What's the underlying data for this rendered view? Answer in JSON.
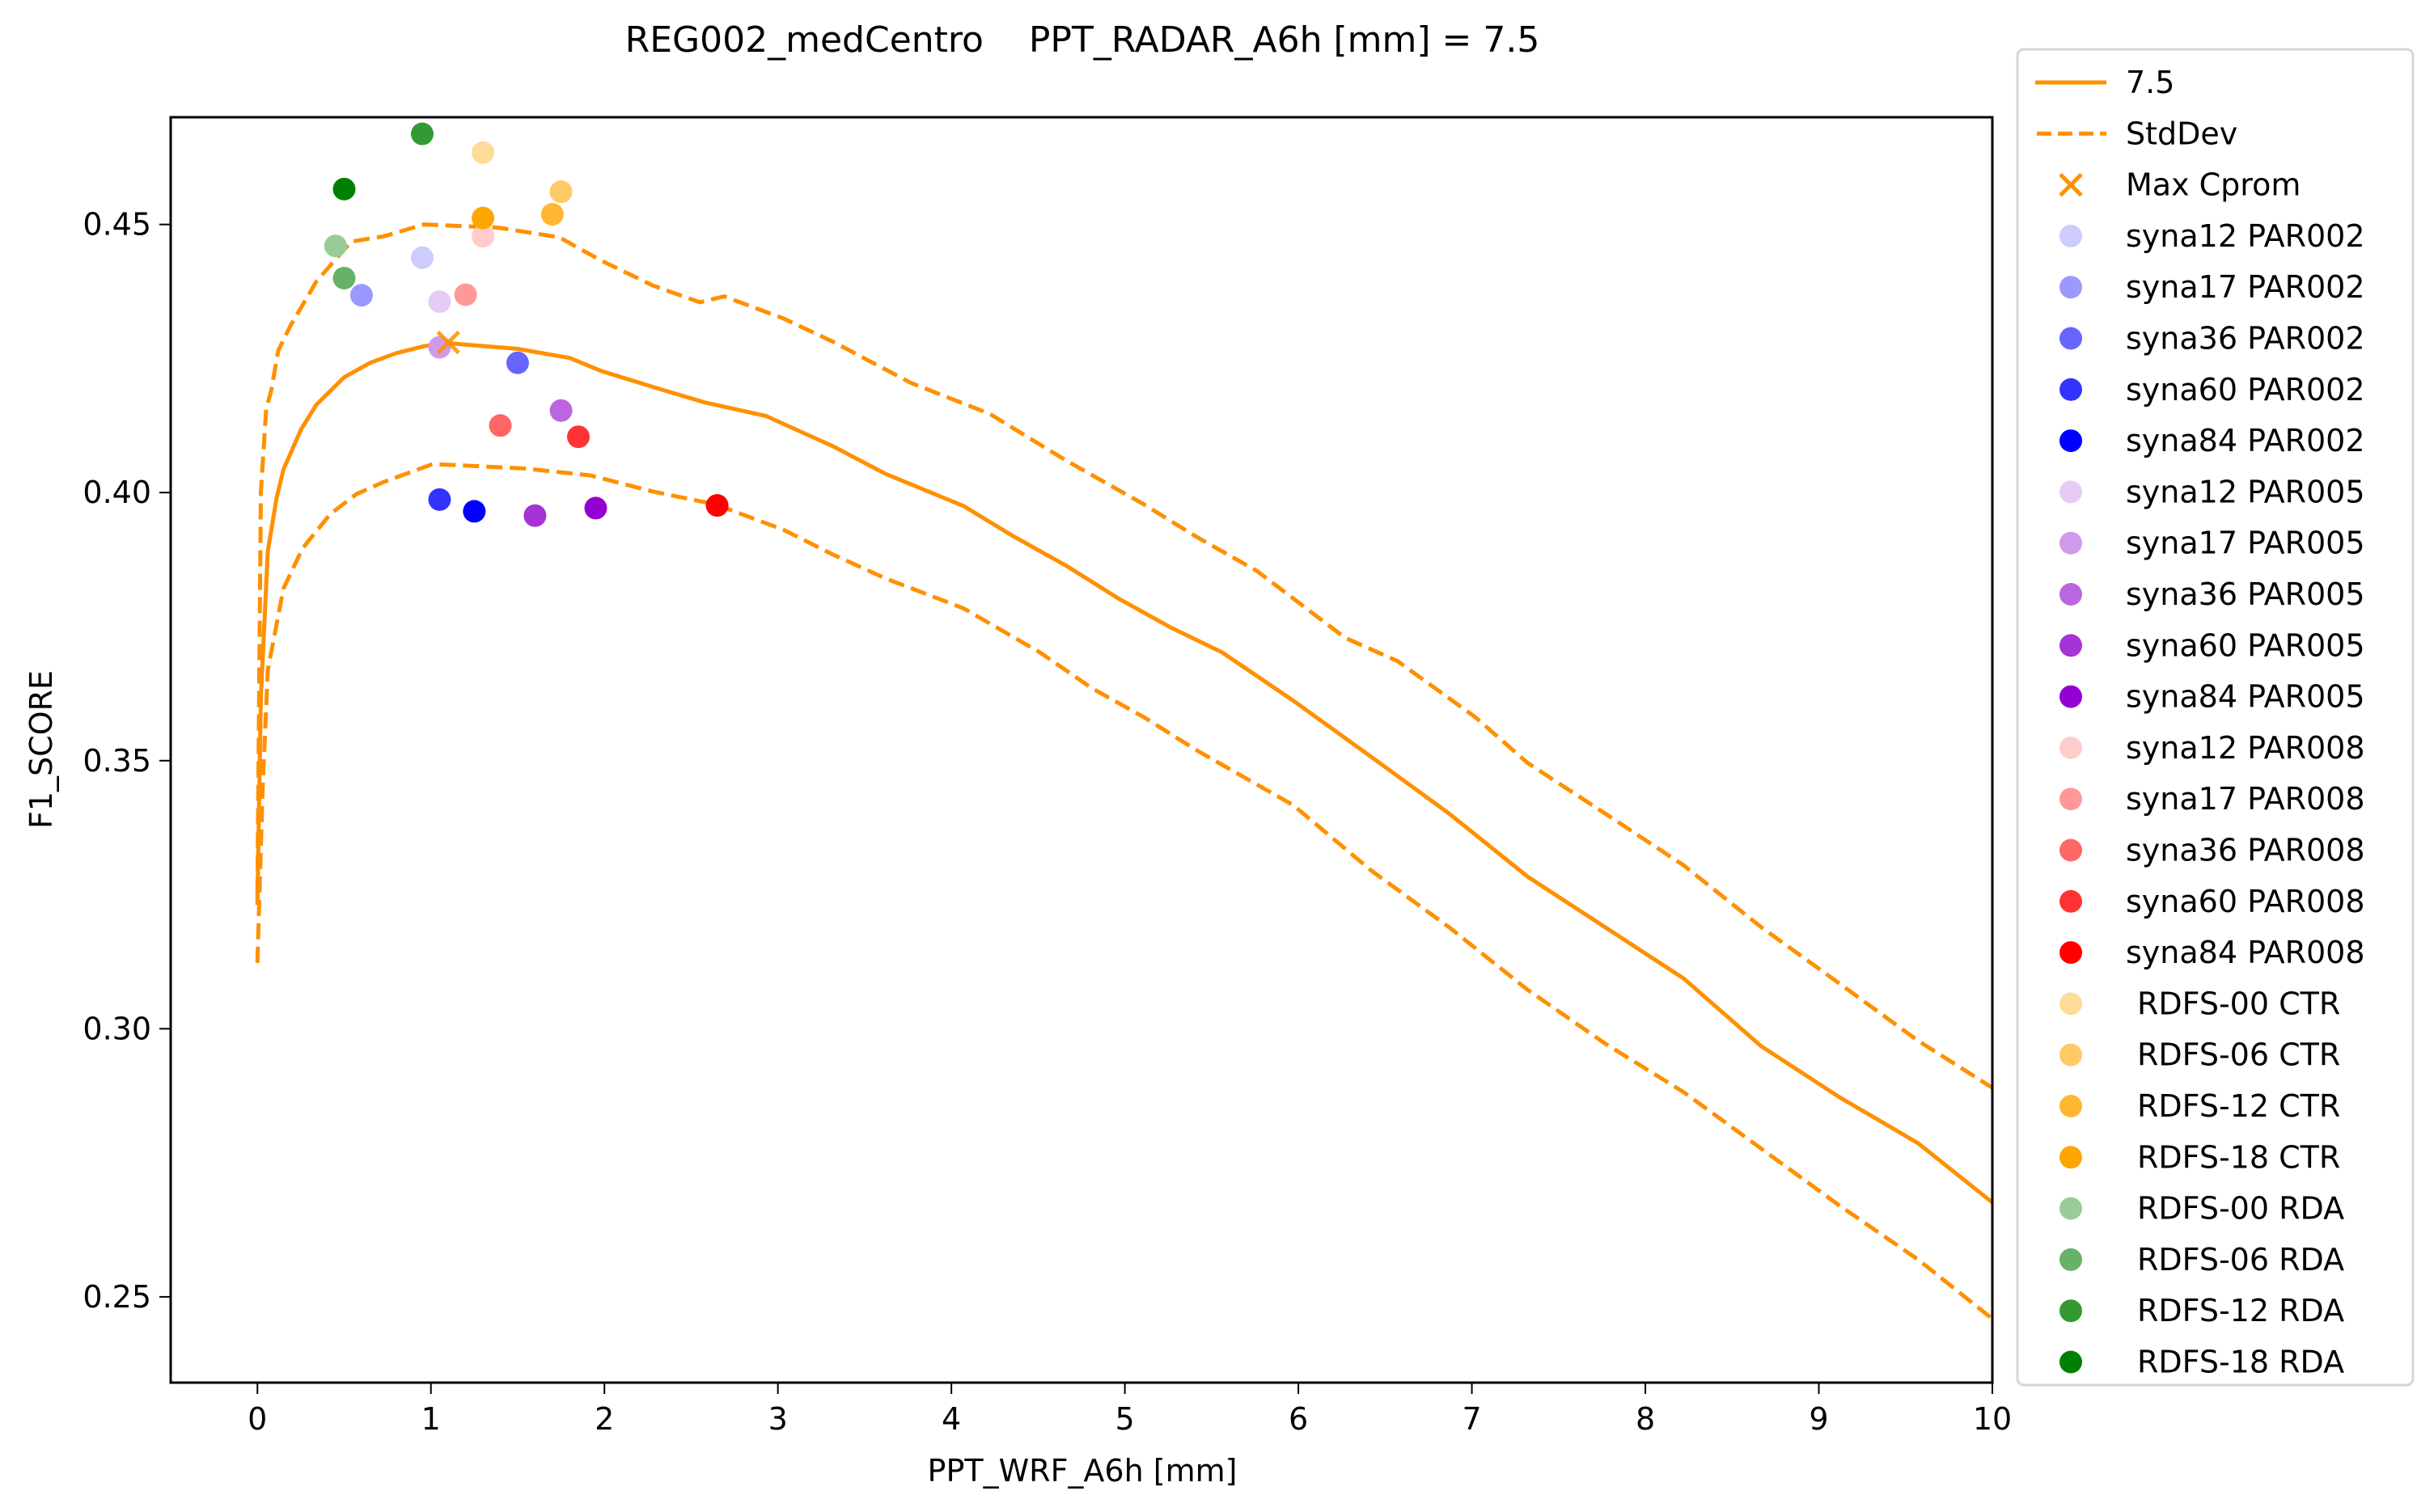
{
  "chart_data": {
    "type": "scatter",
    "title": "REG002_medCentro    PPT_RADAR_A6h [mm] = 7.5",
    "xlabel": "PPT_WRF_A6h [mm]",
    "ylabel": "F1_SCORE",
    "xlim": [
      -0.5,
      10
    ],
    "ylim": [
      0.234,
      0.47
    ],
    "xticks": [
      0,
      1,
      2,
      3,
      4,
      5,
      6,
      7,
      8,
      9,
      10
    ],
    "xtick_labels": [
      "0",
      "1",
      "2",
      "3",
      "4",
      "5",
      "6",
      "7",
      "8",
      "9",
      "10"
    ],
    "yticks": [
      0.25,
      0.3,
      0.35,
      0.4,
      0.45
    ],
    "ytick_labels": [
      "0.25",
      "0.30",
      "0.35",
      "0.40",
      "0.45"
    ],
    "grid": false,
    "legend_position": "outside-right",
    "line_color": "#ff9000",
    "lines": [
      {
        "name": "7.5",
        "style": "solid",
        "x": [
          0.0,
          0.02,
          0.06,
          0.11,
          0.15,
          0.25,
          0.34,
          0.5,
          0.65,
          0.8,
          0.96,
          1.09,
          1.5,
          1.8,
          1.98,
          2.34,
          2.58,
          2.93,
          3.32,
          3.62,
          4.07,
          4.36,
          4.66,
          4.96,
          5.26,
          5.56,
          5.97,
          6.42,
          6.87,
          7.32,
          7.77,
          8.22,
          8.67,
          9.12,
          9.57,
          10.0
        ],
        "y": [
          0.3231,
          0.362,
          0.3891,
          0.3989,
          0.4043,
          0.4117,
          0.4164,
          0.4215,
          0.4242,
          0.426,
          0.4273,
          0.4279,
          0.4268,
          0.4251,
          0.4227,
          0.4191,
          0.4168,
          0.4143,
          0.4086,
          0.4035,
          0.3975,
          0.3918,
          0.3864,
          0.3803,
          0.3749,
          0.3702,
          0.3612,
          0.3507,
          0.3401,
          0.3284,
          0.3189,
          0.3094,
          0.2967,
          0.2872,
          0.2787,
          0.2676
        ]
      },
      {
        "name": "StdDev",
        "style": "dashed",
        "x": [
          0.0,
          0.02,
          0.05,
          0.08,
          0.12,
          0.19,
          0.34,
          0.54,
          0.73,
          0.96,
          1.39,
          1.74,
          1.98,
          2.28,
          2.55,
          2.69,
          3.03,
          3.32,
          3.77,
          4.22,
          4.66,
          5.11,
          5.41,
          5.76,
          6.27,
          6.57,
          7.02,
          7.32,
          7.77,
          8.22,
          8.67,
          9.12,
          9.57,
          10.0
        ],
        "y": [
          0.325,
          0.4,
          0.4155,
          0.4191,
          0.4265,
          0.4311,
          0.4394,
          0.4468,
          0.4478,
          0.45,
          0.4494,
          0.4476,
          0.4433,
          0.4386,
          0.4355,
          0.4366,
          0.4325,
          0.4281,
          0.4204,
          0.4147,
          0.406,
          0.3978,
          0.3918,
          0.3854,
          0.3729,
          0.3686,
          0.3581,
          0.3496,
          0.3401,
          0.3305,
          0.3189,
          0.3084,
          0.2978,
          0.289
        ]
      },
      {
        "name": "StdDev-lower",
        "style": "dashed",
        "x": [
          0.0,
          0.03,
          0.06,
          0.15,
          0.26,
          0.42,
          0.57,
          0.73,
          1.01,
          1.09,
          1.54,
          1.92,
          2.28,
          2.64,
          3.03,
          3.32,
          3.62,
          4.07,
          4.51,
          4.81,
          5.11,
          5.41,
          5.97,
          6.42,
          6.87,
          7.32,
          7.77,
          8.22,
          8.67,
          9.12,
          9.57,
          10.0
        ],
        "y": [
          0.3123,
          0.345,
          0.3669,
          0.3821,
          0.3896,
          0.396,
          0.3997,
          0.402,
          0.4053,
          0.4052,
          0.4045,
          0.4032,
          0.4002,
          0.3978,
          0.3931,
          0.3884,
          0.384,
          0.3784,
          0.3702,
          0.3635,
          0.3581,
          0.352,
          0.3417,
          0.3295,
          0.3189,
          0.3073,
          0.2972,
          0.2882,
          0.2776,
          0.267,
          0.257,
          0.2459
        ]
      }
    ],
    "max_point": {
      "name": "Max Cprom",
      "x": 1.1,
      "y": 0.428,
      "marker": "x",
      "color": "#ff9000"
    },
    "series": [
      {
        "name": "syna12 PAR002",
        "color": "#ccccff",
        "x": 0.95,
        "y": 0.4438
      },
      {
        "name": "syna17 PAR002",
        "color": "#9999ff",
        "x": 0.6,
        "y": 0.4368
      },
      {
        "name": "syna36 PAR002",
        "color": "#6666ff",
        "x": 1.5,
        "y": 0.4242
      },
      {
        "name": "syna60 PAR002",
        "color": "#3333ff",
        "x": 1.05,
        "y": 0.3987
      },
      {
        "name": "syna84 PAR002",
        "color": "#0000ff",
        "x": 1.25,
        "y": 0.3965
      },
      {
        "name": "syna12 PAR005",
        "color": "#e6ccf5",
        "x": 1.05,
        "y": 0.4356
      },
      {
        "name": "syna17 PAR005",
        "color": "#d199eb",
        "x": 1.05,
        "y": 0.4271
      },
      {
        "name": "syna36 PAR005",
        "color": "#bb66e0",
        "x": 1.75,
        "y": 0.4153
      },
      {
        "name": "syna60 PAR005",
        "color": "#a633d6",
        "x": 1.6,
        "y": 0.3957
      },
      {
        "name": "syna84 PAR005",
        "color": "#9400d3",
        "x": 1.95,
        "y": 0.3971
      },
      {
        "name": "syna12 PAR008",
        "color": "#ffcccc",
        "x": 1.3,
        "y": 0.4478
      },
      {
        "name": "syna17 PAR008",
        "color": "#ff9999",
        "x": 1.2,
        "y": 0.4369
      },
      {
        "name": "syna36 PAR008",
        "color": "#ff6666",
        "x": 1.4,
        "y": 0.4125
      },
      {
        "name": "syna60 PAR008",
        "color": "#ff3333",
        "x": 1.85,
        "y": 0.4104
      },
      {
        "name": "syna84 PAR008",
        "color": "#ff0000",
        "x": 2.65,
        "y": 0.3976
      },
      {
        "name": "RDFS-00 CTR",
        "color": "#ffdb99",
        "x": 1.3,
        "y": 0.4634
      },
      {
        "name": "RDFS-06 CTR",
        "color": "#ffc966",
        "x": 1.75,
        "y": 0.4561
      },
      {
        "name": "RDFS-12 CTR",
        "color": "#ffb733",
        "x": 1.7,
        "y": 0.4519
      },
      {
        "name": "RDFS-18 CTR",
        "color": "#ffa500",
        "x": 1.3,
        "y": 0.4512
      },
      {
        "name": "RDFS-00 RDA",
        "color": "#99cc99",
        "x": 0.45,
        "y": 0.446
      },
      {
        "name": "RDFS-06 RDA",
        "color": "#66b266",
        "x": 0.5,
        "y": 0.44
      },
      {
        "name": "RDFS-12 RDA",
        "color": "#339933",
        "x": 0.95,
        "y": 0.4669
      },
      {
        "name": "RDFS-18 RDA",
        "color": "#008000",
        "x": 0.5,
        "y": 0.4566
      }
    ],
    "legend": [
      {
        "label": "7.5",
        "kind": "line-solid",
        "color": "#ff9000"
      },
      {
        "label": "StdDev",
        "kind": "line-dashed",
        "color": "#ff9000"
      },
      {
        "label": "Max Cprom",
        "kind": "x",
        "color": "#ff9000"
      },
      {
        "label": "syna12 PAR002",
        "kind": "dot",
        "color": "#ccccff"
      },
      {
        "label": "syna17 PAR002",
        "kind": "dot",
        "color": "#9999ff"
      },
      {
        "label": "syna36 PAR002",
        "kind": "dot",
        "color": "#6666ff"
      },
      {
        "label": "syna60 PAR002",
        "kind": "dot",
        "color": "#3333ff"
      },
      {
        "label": "syna84 PAR002",
        "kind": "dot",
        "color": "#0000ff"
      },
      {
        "label": "syna12 PAR005",
        "kind": "dot",
        "color": "#e6ccf5"
      },
      {
        "label": "syna17 PAR005",
        "kind": "dot",
        "color": "#d199eb"
      },
      {
        "label": "syna36 PAR005",
        "kind": "dot",
        "color": "#bb66e0"
      },
      {
        "label": "syna60 PAR005",
        "kind": "dot",
        "color": "#a633d6"
      },
      {
        "label": "syna84 PAR005",
        "kind": "dot",
        "color": "#9400d3"
      },
      {
        "label": "syna12 PAR008",
        "kind": "dot",
        "color": "#ffcccc"
      },
      {
        "label": "syna17 PAR008",
        "kind": "dot",
        "color": "#ff9999"
      },
      {
        "label": "syna36 PAR008",
        "kind": "dot",
        "color": "#ff6666"
      },
      {
        "label": "syna60 PAR008",
        "kind": "dot",
        "color": "#ff3333"
      },
      {
        "label": "syna84 PAR008",
        "kind": "dot",
        "color": "#ff0000"
      },
      {
        "label": "RDFS-00 CTR",
        "kind": "dot",
        "color": "#ffdb99"
      },
      {
        "label": "RDFS-06 CTR",
        "kind": "dot",
        "color": "#ffc966"
      },
      {
        "label": "RDFS-12 CTR",
        "kind": "dot",
        "color": "#ffb733"
      },
      {
        "label": "RDFS-18 CTR",
        "kind": "dot",
        "color": "#ffa500"
      },
      {
        "label": "RDFS-00 RDA",
        "kind": "dot",
        "color": "#99cc99"
      },
      {
        "label": "RDFS-06 RDA",
        "kind": "dot",
        "color": "#66b266"
      },
      {
        "label": "RDFS-12 RDA",
        "kind": "dot",
        "color": "#339933"
      },
      {
        "label": "RDFS-18 RDA",
        "kind": "dot",
        "color": "#008000"
      }
    ]
  }
}
